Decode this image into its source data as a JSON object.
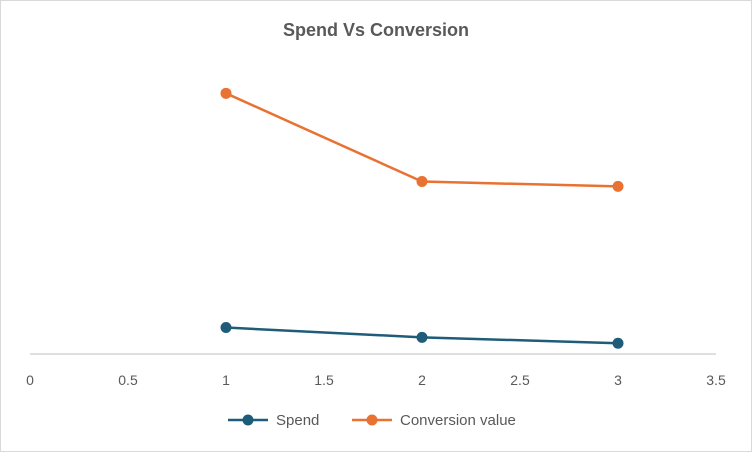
{
  "chart_data": {
    "type": "scatter",
    "title": "Spend Vs Conversion",
    "xlabel": "",
    "ylabel": "",
    "xlim": [
      0,
      3.5
    ],
    "x_ticks": [
      "0",
      "0.5",
      "1",
      "1.5",
      "2",
      "2.5",
      "3",
      "3.5"
    ],
    "y_axis_labels_visible": false,
    "grid": false,
    "legend": "bottom",
    "series": [
      {
        "name": "Spend",
        "color": "#1f5c7a",
        "x": [
          1,
          2,
          3
        ],
        "y": [
          27,
          17,
          11
        ]
      },
      {
        "name": "Conversion value",
        "color": "#e97132",
        "x": [
          1,
          2,
          3
        ],
        "y": [
          266,
          176,
          171
        ]
      }
    ],
    "ylim": [
      0,
      300
    ]
  }
}
